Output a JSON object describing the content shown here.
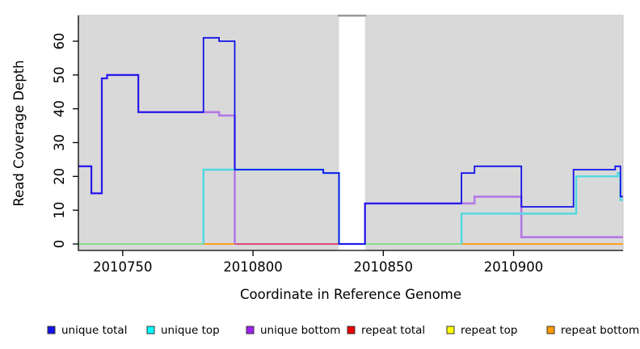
{
  "chart_data": {
    "type": "line",
    "step": true,
    "title": "",
    "xlabel": "Coordinate in Reference Genome",
    "ylabel": "Read Coverage Depth",
    "xlim": [
      2010733,
      2010942
    ],
    "ylim": [
      0,
      67.5
    ],
    "x_ticks": [
      2010750,
      2010800,
      2010850,
      2010900
    ],
    "y_ticks": [
      0,
      10,
      20,
      30,
      40,
      50,
      60
    ],
    "grid": false,
    "plot_bg": "#d9d9d9",
    "gap_region": {
      "x0": 2010833,
      "x1": 2010843,
      "fill": "#ffffff",
      "top_border": "#909090"
    },
    "series": [
      {
        "name": "zero-line-overlap",
        "in_legend": false,
        "color": "#8bdb8b",
        "width": 2,
        "segments": [
          [
            [
              2010733,
              0
            ],
            [
              2010781,
              0
            ]
          ],
          [
            [
              2010843,
              0
            ],
            [
              2010880,
              0
            ]
          ]
        ]
      },
      {
        "name": "repeat bottom",
        "in_legend": true,
        "color": "#ffa020",
        "width": 2,
        "segments": [
          [
            [
              2010781,
              0
            ],
            [
              2010793,
              0
            ]
          ],
          [
            [
              2010880,
              0
            ],
            [
              2010942,
              0
            ]
          ]
        ]
      },
      {
        "name": "repeat total",
        "in_legend": true,
        "color": "#dc4a78",
        "width": 2,
        "segments": [
          [
            [
              2010793,
              0
            ],
            [
              2010833,
              0
            ]
          ]
        ]
      },
      {
        "name": "repeat top",
        "in_legend": true,
        "color": "#ffff00",
        "width": 2,
        "segments": []
      },
      {
        "name": "gap-zero-overlap",
        "in_legend": false,
        "color": "#7a52e8",
        "width": 2.2,
        "segments": [
          [
            [
              2010833,
              0
            ],
            [
              2010843,
              0
            ]
          ]
        ]
      },
      {
        "name": "unique bottom",
        "in_legend": true,
        "color": "#b478e6",
        "width": 2.6,
        "segments": [
          [
            [
              2010733,
              23
            ],
            [
              2010738,
              15
            ],
            [
              2010742,
              49
            ],
            [
              2010744,
              50
            ],
            [
              2010756,
              39
            ],
            [
              2010787,
              38
            ],
            [
              2010793,
              0
            ]
          ],
          [
            [
              2010843,
              0
            ],
            [
              2010843,
              12
            ],
            [
              2010885,
              14
            ],
            [
              2010903,
              2
            ],
            [
              2010942,
              2
            ]
          ]
        ]
      },
      {
        "name": "unique top",
        "in_legend": true,
        "color": "#4fd9e0",
        "width": 2.4,
        "segments": [
          [
            [
              2010781,
              0
            ],
            [
              2010781,
              22
            ],
            [
              2010827,
              21
            ],
            [
              2010833,
              0
            ]
          ],
          [
            [
              2010880,
              0
            ],
            [
              2010880,
              9
            ],
            [
              2010924,
              20
            ],
            [
              2010940,
              21
            ],
            [
              2010941,
              13
            ],
            [
              2010942,
              13
            ]
          ]
        ]
      },
      {
        "name": "unique total",
        "in_legend": true,
        "color": "#1212ea",
        "width": 1.8,
        "segments": [
          [
            [
              2010733,
              23
            ],
            [
              2010738,
              15
            ],
            [
              2010742,
              49
            ],
            [
              2010744,
              50
            ],
            [
              2010756,
              39
            ],
            [
              2010781,
              61
            ],
            [
              2010787,
              60
            ],
            [
              2010793,
              22
            ],
            [
              2010827,
              21
            ],
            [
              2010833,
              0
            ],
            [
              2010843,
              12
            ],
            [
              2010880,
              21
            ],
            [
              2010885,
              23
            ],
            [
              2010903,
              11
            ],
            [
              2010923,
              22
            ],
            [
              2010939,
              23
            ],
            [
              2010941,
              14
            ],
            [
              2010942,
              14
            ]
          ]
        ]
      }
    ]
  },
  "legend": {
    "items": [
      {
        "label": "unique total",
        "color": "#1212ea"
      },
      {
        "label": "unique top",
        "color": "#00ffff"
      },
      {
        "label": "unique bottom",
        "color": "#a020f0"
      },
      {
        "label": "repeat total",
        "color": "#ee0000"
      },
      {
        "label": "repeat top",
        "color": "#ffff00"
      },
      {
        "label": "repeat bottom",
        "color": "#ff9900"
      }
    ]
  }
}
